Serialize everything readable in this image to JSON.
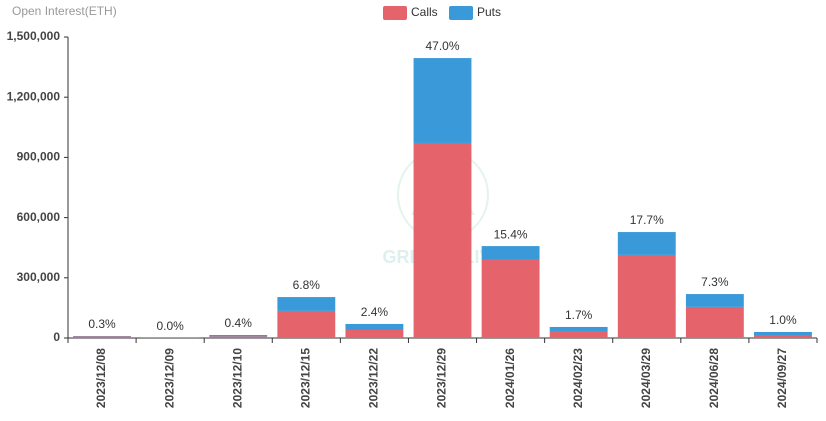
{
  "chart_data": {
    "type": "stacked_bar",
    "title": "Open Interest(ETH)",
    "watermark": "GREEKS.LIVE",
    "categories": [
      "2023/12/08",
      "2023/12/09",
      "2023/12/10",
      "2023/12/15",
      "2023/12/22",
      "2023/12/29",
      "2024/01/26",
      "2024/02/23",
      "2024/03/29",
      "2024/06/28",
      "2024/09/27"
    ],
    "series": [
      {
        "name": "Calls",
        "color": "#e5636a",
        "values": [
          8000,
          500,
          8000,
          135000,
          40000,
          972000,
          389000,
          35000,
          414000,
          155000,
          15000
        ]
      },
      {
        "name": "Puts",
        "color": "#3a9ad9",
        "values": [
          2000,
          300,
          7000,
          69000,
          30000,
          423000,
          69000,
          20000,
          114000,
          64000,
          15000
        ]
      }
    ],
    "share_labels": [
      "0.3%",
      "0.0%",
      "0.4%",
      "6.8%",
      "2.4%",
      "47.0%",
      "15.4%",
      "1.7%",
      "17.7%",
      "7.3%",
      "1.0%"
    ],
    "ylim": [
      0,
      1500000
    ],
    "yticks": [
      0,
      {
        "value": 300000,
        "label": "300,000"
      },
      {
        "value": 600000,
        "label": "600,000"
      },
      {
        "value": 900000,
        "label": "900,000"
      },
      {
        "value": 1200000,
        "label": "1,200,000"
      },
      {
        "value": 1500000,
        "label": "1,500,000"
      }
    ],
    "grid": false,
    "legend": "top"
  }
}
